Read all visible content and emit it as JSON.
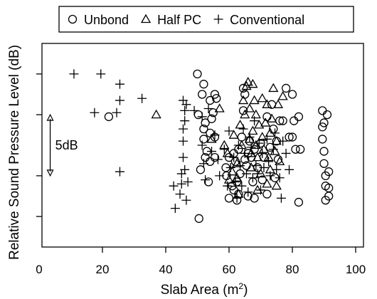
{
  "chart_data": {
    "type": "scatter",
    "xlabel": "Slab Area (m",
    "xlabel_superscript": "2",
    "xlabel_close": ")",
    "ylabel": "Relative Sound Pressure Level (dB)",
    "xlim": [
      0,
      100
    ],
    "ylim": [
      0,
      10
    ],
    "x_ticks": [
      0,
      20,
      40,
      60,
      80,
      100
    ],
    "x_tick_labels": [
      "0",
      "20",
      "40",
      "60",
      "80",
      "100"
    ],
    "y_ticks": [
      1.5,
      3.5,
      6.5,
      8.5
    ],
    "grid": false,
    "legend_position": "top",
    "annotation": {
      "label": "5dB",
      "x": 3.5,
      "y_from": 3.5,
      "y_to": 6.5
    },
    "series": [
      {
        "name": "Unbond",
        "marker": "circle",
        "points": [
          [
            22.0,
            6.4
          ],
          [
            50.0,
            8.5
          ],
          [
            50.3,
            6.5
          ],
          [
            50.5,
            1.4
          ],
          [
            51.0,
            3.8
          ],
          [
            51.5,
            7.5
          ],
          [
            52.0,
            8.0
          ],
          [
            52.0,
            5.8
          ],
          [
            52.5,
            6.1
          ],
          [
            52.0,
            5.3
          ],
          [
            52.5,
            4.4
          ],
          [
            53.0,
            4.7
          ],
          [
            53.5,
            3.2
          ],
          [
            54.0,
            5.6
          ],
          [
            54.0,
            7.2
          ],
          [
            54.5,
            6.3
          ],
          [
            54.0,
            4.2
          ],
          [
            55.5,
            4.4
          ],
          [
            55.5,
            5.4
          ],
          [
            56.0,
            7.3
          ],
          [
            55.0,
            6.6
          ],
          [
            55.5,
            7.5
          ],
          [
            59.0,
            3.9
          ],
          [
            59.2,
            3.5
          ],
          [
            60.0,
            2.4
          ],
          [
            60.0,
            4.4
          ],
          [
            61.0,
            3.0
          ],
          [
            61.5,
            4.6
          ],
          [
            61.5,
            2.8
          ],
          [
            62.0,
            4.2
          ],
          [
            62.5,
            2.3
          ],
          [
            62.5,
            3.2
          ],
          [
            63.0,
            2.6
          ],
          [
            63.0,
            4.8
          ],
          [
            63.5,
            3.6
          ],
          [
            64.0,
            5.4
          ],
          [
            64.5,
            6.7
          ],
          [
            64.5,
            7.8
          ],
          [
            65.0,
            7.5
          ],
          [
            65.0,
            4.3
          ],
          [
            65.5,
            4.0
          ],
          [
            66.0,
            4.6
          ],
          [
            66.0,
            2.5
          ],
          [
            66.5,
            5.2
          ],
          [
            67.0,
            4.4
          ],
          [
            67.5,
            3.2
          ],
          [
            68.0,
            4.8
          ],
          [
            68.0,
            2.4
          ],
          [
            69.0,
            3.9
          ],
          [
            70.0,
            5.1
          ],
          [
            70.5,
            3.3
          ],
          [
            71.0,
            4.4
          ],
          [
            72.0,
            6.4
          ],
          [
            72.0,
            2.6
          ],
          [
            73.0,
            4.9
          ],
          [
            73.5,
            7.0
          ],
          [
            74.0,
            5.8
          ],
          [
            74.5,
            3.4
          ],
          [
            75.0,
            5.2
          ],
          [
            75.5,
            4.3
          ],
          [
            76.0,
            6.2
          ],
          [
            77.0,
            6.2
          ],
          [
            78.0,
            7.8
          ],
          [
            79.0,
            5.4
          ],
          [
            80.0,
            7.5
          ],
          [
            80.5,
            6.2
          ],
          [
            80.0,
            5.4
          ],
          [
            81.0,
            4.8
          ],
          [
            82.0,
            6.4
          ],
          [
            82.0,
            2.2
          ],
          [
            82.5,
            4.8
          ],
          [
            89.5,
            6.7
          ],
          [
            89.5,
            5.9
          ],
          [
            89.5,
            5.3
          ],
          [
            90.0,
            4.7
          ],
          [
            90.0,
            4.1
          ],
          [
            90.5,
            3.5
          ],
          [
            90.5,
            2.3
          ],
          [
            91.0,
            6.5
          ],
          [
            91.5,
            3.7
          ],
          [
            91.5,
            2.9
          ],
          [
            91.5,
            2.5
          ],
          [
            90.5,
            3.0
          ],
          [
            90.0,
            6.1
          ]
        ]
      },
      {
        "name": "Half PC",
        "marker": "triangle",
        "points": [
          [
            37.0,
            6.5
          ],
          [
            54.5,
            5.3
          ],
          [
            57.0,
            6.8
          ],
          [
            58.5,
            5.0
          ],
          [
            59.5,
            4.6
          ],
          [
            61.0,
            3.7
          ],
          [
            61.5,
            5.5
          ],
          [
            62.5,
            4.1
          ],
          [
            62.5,
            3.4
          ],
          [
            63.5,
            6.0
          ],
          [
            64.0,
            5.0
          ],
          [
            64.5,
            7.2
          ],
          [
            65.0,
            6.5
          ],
          [
            65.5,
            7.9
          ],
          [
            66.0,
            8.1
          ],
          [
            66.5,
            6.8
          ],
          [
            66.5,
            5.3
          ],
          [
            67.0,
            4.6
          ],
          [
            67.0,
            3.9
          ],
          [
            67.5,
            5.7
          ],
          [
            67.5,
            8.0
          ],
          [
            68.0,
            7.2
          ],
          [
            68.5,
            6.5
          ],
          [
            68.5,
            5.0
          ],
          [
            69.0,
            4.4
          ],
          [
            69.5,
            6.0
          ],
          [
            70.0,
            3.6
          ],
          [
            70.5,
            5.4
          ],
          [
            70.5,
            7.3
          ],
          [
            71.0,
            4.8
          ],
          [
            71.5,
            6.1
          ],
          [
            72.0,
            7.0
          ],
          [
            72.5,
            4.4
          ],
          [
            73.0,
            5.6
          ],
          [
            73.0,
            3.8
          ],
          [
            73.5,
            6.3
          ],
          [
            74.0,
            7.8
          ],
          [
            74.5,
            4.7
          ],
          [
            75.0,
            5.2
          ],
          [
            75.5,
            7.0
          ],
          [
            76.0,
            4.2
          ],
          [
            77.0,
            7.4
          ],
          [
            60.0,
            3.3
          ],
          [
            63.0,
            2.6
          ],
          [
            69.0,
            2.8
          ],
          [
            72.0,
            3.1
          ],
          [
            75.0,
            3.0
          ]
        ]
      },
      {
        "name": "Conventional",
        "marker": "plus",
        "points": [
          [
            11.0,
            8.5
          ],
          [
            19.5,
            8.5
          ],
          [
            17.5,
            6.6
          ],
          [
            24.5,
            6.6
          ],
          [
            25.5,
            8.0
          ],
          [
            25.5,
            7.2
          ],
          [
            32.5,
            7.3
          ],
          [
            25.5,
            3.7
          ],
          [
            42.5,
            3.0
          ],
          [
            43.0,
            1.9
          ],
          [
            44.5,
            2.6
          ],
          [
            45.0,
            3.1
          ],
          [
            45.0,
            3.6
          ],
          [
            45.5,
            4.4
          ],
          [
            45.5,
            5.2
          ],
          [
            45.5,
            5.8
          ],
          [
            46.0,
            6.2
          ],
          [
            46.0,
            6.7
          ],
          [
            46.5,
            7.0
          ],
          [
            45.5,
            7.2
          ],
          [
            46.0,
            3.8
          ],
          [
            46.5,
            2.3
          ],
          [
            47.0,
            3.2
          ],
          [
            49.0,
            6.7
          ],
          [
            51.5,
            6.4
          ],
          [
            51.5,
            5.0
          ],
          [
            52.0,
            4.1
          ],
          [
            52.5,
            3.3
          ],
          [
            53.5,
            6.8
          ],
          [
            54.5,
            4.7
          ],
          [
            55.5,
            5.5
          ],
          [
            56.5,
            4.3
          ],
          [
            57.0,
            3.5
          ],
          [
            58.5,
            4.8
          ],
          [
            59.5,
            3.0
          ],
          [
            60.0,
            5.7
          ],
          [
            60.5,
            3.9
          ],
          [
            61.5,
            4.4
          ],
          [
            62.0,
            3.2
          ],
          [
            62.5,
            2.4
          ],
          [
            63.0,
            5.0
          ],
          [
            63.5,
            4.0
          ],
          [
            64.0,
            3.0
          ],
          [
            64.5,
            5.8
          ],
          [
            65.0,
            4.6
          ],
          [
            65.5,
            3.6
          ],
          [
            66.0,
            2.7
          ],
          [
            66.5,
            5.4
          ],
          [
            67.0,
            4.9
          ],
          [
            67.5,
            3.4
          ],
          [
            68.0,
            6.2
          ],
          [
            68.5,
            4.0
          ],
          [
            69.0,
            3.6
          ],
          [
            69.5,
            5.1
          ],
          [
            70.0,
            2.8
          ],
          [
            70.5,
            4.6
          ],
          [
            71.0,
            3.9
          ],
          [
            72.0,
            5.3
          ],
          [
            72.5,
            4.2
          ],
          [
            73.0,
            3.5
          ],
          [
            74.0,
            4.8
          ],
          [
            75.0,
            3.8
          ],
          [
            76.0,
            3.4
          ],
          [
            76.5,
            2.4
          ],
          [
            77.0,
            5.2
          ],
          [
            78.0,
            4.6
          ],
          [
            79.0,
            3.8
          ],
          [
            74.5,
            5.6
          ]
        ]
      }
    ]
  }
}
